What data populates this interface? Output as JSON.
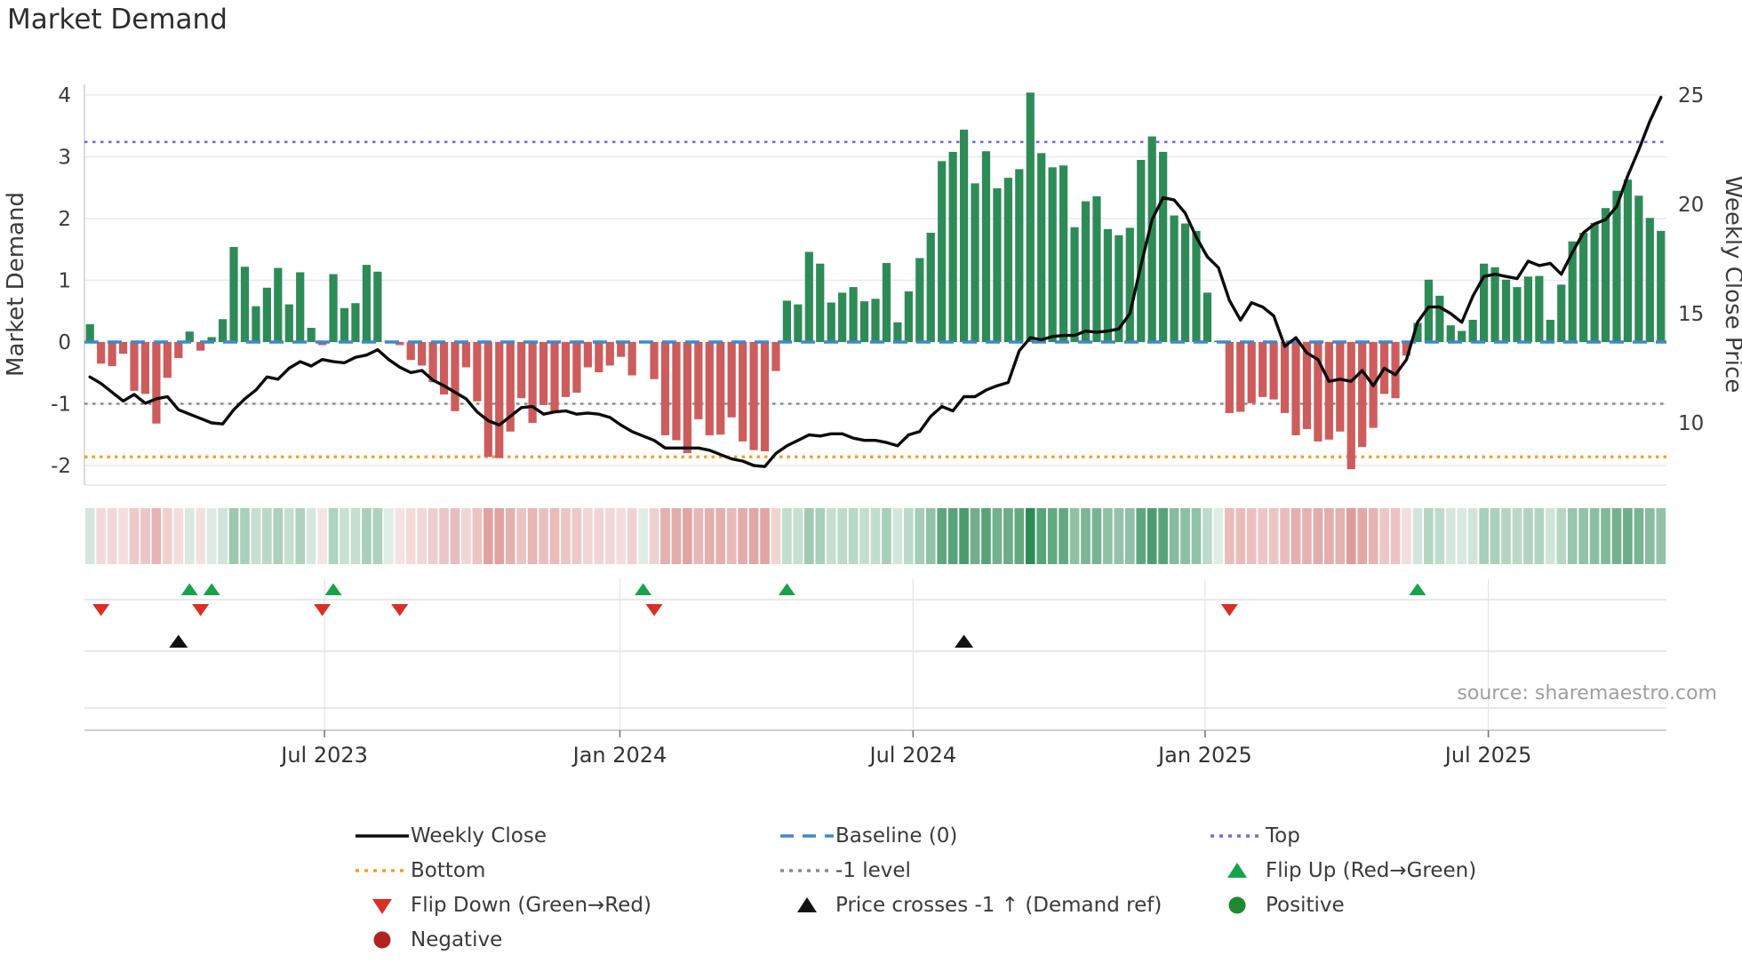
{
  "title": "Market Demand",
  "source": "source: sharemaestro.com",
  "axes": {
    "left_label": "Market Demand",
    "right_label": "Weekly Close Price",
    "left_ticks": [
      4,
      3,
      2,
      1,
      0,
      -1,
      -2
    ],
    "right_ticks": [
      25,
      20,
      15,
      10
    ],
    "x_tick_labels": [
      "Jul 2023",
      "Jan 2024",
      "Jul 2024",
      "Jan 2025",
      "Jul 2025"
    ],
    "x_tick_weeks": [
      21.2,
      47.9,
      74.4,
      100.8,
      126.4
    ]
  },
  "colors": {
    "positive_bar": "#2e8b57",
    "negative_bar": "#cd5c5c",
    "baseline": "#3f88c5",
    "top_line": "#7668dd",
    "bottom_line": "#f59d28",
    "minus1_line": "#8a8a8a",
    "price_line": "#0c0c0c",
    "flip_up": "#18a24b",
    "flip_down": "#d93025",
    "price_cross": "#111111",
    "legend_negative": "#b22222",
    "legend_positive": "#1e8a31",
    "grid": "#e9e9f0"
  },
  "ref_lines": {
    "baseline": {
      "label": "Baseline (0)",
      "value": 0
    },
    "top": {
      "label": "Top",
      "value": 3.24
    },
    "bottom": {
      "label": "Bottom",
      "value": -1.86
    },
    "minus1": {
      "label": "-1 level",
      "value": -1
    }
  },
  "chart_data": {
    "type": "bar+line",
    "title": "Market Demand",
    "x_unit": "week",
    "ylabel_left": "Market Demand",
    "ylabel_right": "Weekly Close Price",
    "ylim_left": [
      -2.3,
      4.17
    ],
    "ylim_right": [
      7.0,
      25.5
    ],
    "grid": true,
    "legend_position": "bottom",
    "series": [
      {
        "name": "Market Demand",
        "type": "bar",
        "values": [
          0.29,
          -0.35,
          -0.39,
          -0.19,
          -0.79,
          -0.84,
          -1.32,
          -0.58,
          -0.26,
          0.17,
          -0.14,
          0.08,
          0.37,
          1.54,
          1.22,
          0.58,
          0.88,
          1.2,
          0.61,
          1.13,
          0.23,
          -0.05,
          1.1,
          0.55,
          0.63,
          1.25,
          1.14,
          0.02,
          -0.05,
          -0.29,
          -0.38,
          -0.65,
          -0.85,
          -1.12,
          -0.41,
          -0.96,
          -1.86,
          -1.88,
          -1.45,
          -0.91,
          -1.31,
          -1.02,
          -1.15,
          -0.89,
          -0.82,
          -0.41,
          -0.49,
          -0.38,
          -0.24,
          -0.54,
          0.02,
          -0.6,
          -1.51,
          -1.59,
          -1.8,
          -1.25,
          -1.51,
          -1.5,
          -1.22,
          -1.61,
          -1.75,
          -1.77,
          -0.47,
          0.67,
          0.61,
          1.46,
          1.27,
          0.64,
          0.8,
          0.89,
          0.66,
          0.7,
          1.28,
          0.32,
          0.82,
          1.36,
          1.77,
          2.93,
          3.08,
          3.44,
          2.57,
          3.09,
          2.49,
          2.66,
          2.8,
          4.04,
          3.06,
          2.83,
          2.86,
          1.86,
          2.28,
          2.36,
          1.83,
          1.73,
          1.85,
          2.95,
          3.33,
          3.08,
          2.05,
          1.92,
          1.8,
          0.8,
          0.02,
          -1.15,
          -1.13,
          -0.99,
          -0.89,
          -0.93,
          -1.15,
          -1.51,
          -1.41,
          -1.61,
          -1.58,
          -1.45,
          -2.06,
          -1.7,
          -1.39,
          -0.84,
          -0.91,
          -0.22,
          0.31,
          1.01,
          0.75,
          0.27,
          0.18,
          0.36,
          1.27,
          1.21,
          1.01,
          0.89,
          1.06,
          1.07,
          0.36,
          0.93,
          1.63,
          1.77,
          1.93,
          2.17,
          2.45,
          2.63,
          2.37,
          2.01,
          1.8
        ]
      },
      {
        "name": "Weekly Close",
        "type": "line",
        "values": [
          12.1,
          11.8,
          11.4,
          11.0,
          11.3,
          10.9,
          11.1,
          11.2,
          10.6,
          10.4,
          10.2,
          10.0,
          9.95,
          10.6,
          11.1,
          11.5,
          12.1,
          12.0,
          12.5,
          12.8,
          12.6,
          12.9,
          12.8,
          12.75,
          13.0,
          13.1,
          13.35,
          12.9,
          12.55,
          12.3,
          12.4,
          11.95,
          11.7,
          11.4,
          11.1,
          10.5,
          10.1,
          9.9,
          10.3,
          10.7,
          10.75,
          10.4,
          10.5,
          10.55,
          10.4,
          10.45,
          10.4,
          10.25,
          9.9,
          9.6,
          9.4,
          9.2,
          8.85,
          8.85,
          8.85,
          8.85,
          8.75,
          8.55,
          8.35,
          8.25,
          8.05,
          8.0,
          8.6,
          8.95,
          9.2,
          9.45,
          9.4,
          9.5,
          9.5,
          9.3,
          9.2,
          9.2,
          9.1,
          8.95,
          9.45,
          9.6,
          10.3,
          10.75,
          10.55,
          11.2,
          11.2,
          11.5,
          11.7,
          11.85,
          13.3,
          13.9,
          13.8,
          13.95,
          14.0,
          14.0,
          14.2,
          14.15,
          14.2,
          14.3,
          15.0,
          17.2,
          19.3,
          20.3,
          20.2,
          19.6,
          18.5,
          17.6,
          17.1,
          15.6,
          14.7,
          15.5,
          15.3,
          14.9,
          13.5,
          13.9,
          13.2,
          12.9,
          11.9,
          12.0,
          11.9,
          12.4,
          11.7,
          12.5,
          12.2,
          12.9,
          14.6,
          15.3,
          15.3,
          15.0,
          14.6,
          15.8,
          16.7,
          16.8,
          16.7,
          16.6,
          17.4,
          17.2,
          17.3,
          16.8,
          17.8,
          18.7,
          19.1,
          19.3,
          19.9,
          21.3,
          22.5,
          23.8,
          24.9
        ]
      }
    ],
    "markers": {
      "flip_up_weeks": [
        9,
        11,
        22,
        50,
        63,
        120
      ],
      "flip_down_weeks": [
        1,
        10,
        21,
        28,
        51,
        103
      ],
      "price_cross_weeks": [
        8,
        79
      ]
    },
    "heatmap_strip": "cells colored by weekly demand sign and magnitude (green positive, red negative)"
  },
  "legend": {
    "columns": [
      [
        {
          "swatch": "solid-line",
          "color": "#0c0c0c",
          "label": "Weekly Close"
        },
        {
          "swatch": "dotted-line",
          "color": "#f59d28",
          "label": "Bottom"
        },
        {
          "swatch": "triangle-down",
          "color": "#d93025",
          "label": "Flip Down (Green→Red)"
        },
        {
          "swatch": "circle",
          "color": "#b22222",
          "label": "Negative"
        }
      ],
      [
        {
          "swatch": "dashed-line",
          "color": "#3f88c5",
          "label": "Baseline (0)"
        },
        {
          "swatch": "dotted-line",
          "color": "#8a8a8a",
          "label": "-1 level"
        },
        {
          "swatch": "triangle-up",
          "color": "#111111",
          "label": "Price crosses -1 ↑ (Demand ref)"
        }
      ],
      [
        {
          "swatch": "dotted-line",
          "color": "#7668dd",
          "label": "Top"
        },
        {
          "swatch": "triangle-up",
          "color": "#18a24b",
          "label": "Flip Up (Red→Green)"
        },
        {
          "swatch": "circle",
          "color": "#1e8a31",
          "label": "Positive"
        }
      ]
    ]
  }
}
